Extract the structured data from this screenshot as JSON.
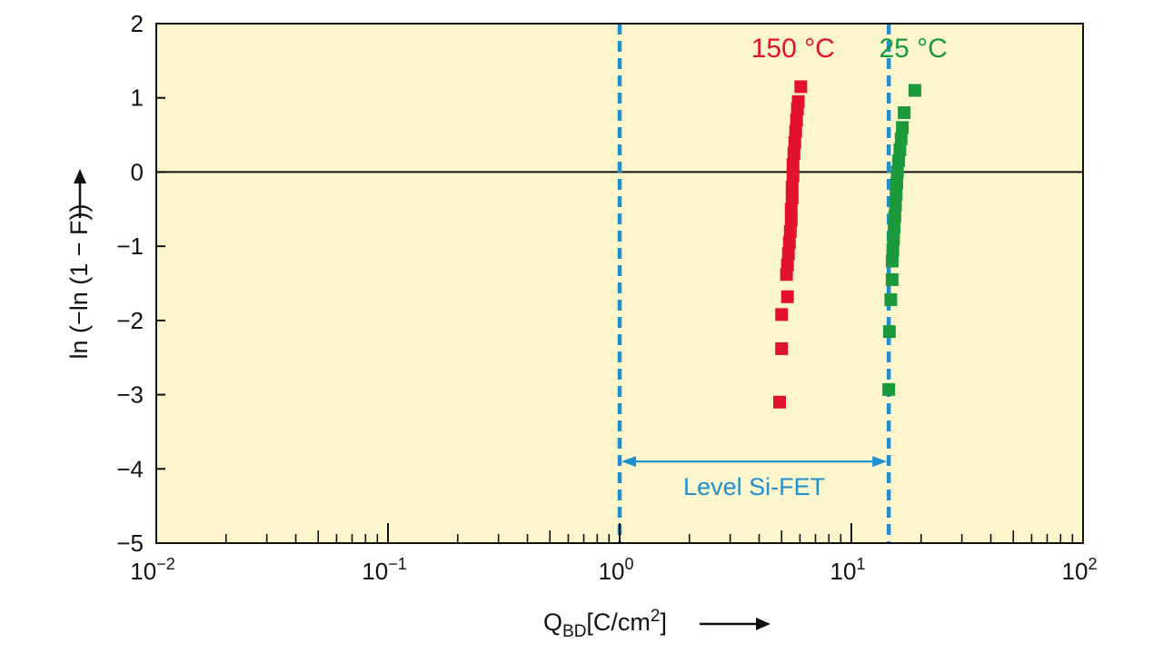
{
  "chart_data": {
    "type": "scatter",
    "title": "",
    "xlabel": {
      "main": "Q",
      "sub": "BD",
      "rest": "[C/cm",
      "sup": "2",
      "close": "]"
    },
    "ylabel": "ln (−ln (1 − F))",
    "x_scale": "log",
    "xlim": [
      0.01,
      100
    ],
    "ylim": [
      -5,
      2
    ],
    "x_ticks": [
      {
        "value": 0.01,
        "base": "10",
        "exp": "−2"
      },
      {
        "value": 0.1,
        "base": "10",
        "exp": "−1"
      },
      {
        "value": 1,
        "base": "10",
        "exp": "0"
      },
      {
        "value": 10,
        "base": "10",
        "exp": "1"
      },
      {
        "value": 100,
        "base": "10",
        "exp": "2"
      }
    ],
    "y_ticks": [
      {
        "value": 2,
        "label": "2"
      },
      {
        "value": 1,
        "label": "1"
      },
      {
        "value": 0,
        "label": "0"
      },
      {
        "value": -1,
        "label": "−1"
      },
      {
        "value": -2,
        "label": "−2"
      },
      {
        "value": -3,
        "label": "−3"
      },
      {
        "value": -4,
        "label": "−4"
      },
      {
        "value": -5,
        "label": "−5"
      }
    ],
    "zero_line": true,
    "plot_background": "#fdf5cc",
    "series": [
      {
        "name": "150 °C",
        "color": "#e3122b",
        "points": [
          [
            4.9,
            -3.1
          ],
          [
            5.0,
            -2.38
          ],
          [
            5.0,
            -1.92
          ],
          [
            5.3,
            -1.68
          ],
          [
            5.25,
            -1.38
          ],
          [
            5.3,
            -1.25
          ],
          [
            5.35,
            -1.1
          ],
          [
            5.4,
            -0.95
          ],
          [
            5.45,
            -0.8
          ],
          [
            5.5,
            -0.65
          ],
          [
            5.5,
            -0.5
          ],
          [
            5.55,
            -0.35
          ],
          [
            5.55,
            -0.2
          ],
          [
            5.6,
            -0.05
          ],
          [
            5.6,
            0.1
          ],
          [
            5.65,
            0.25
          ],
          [
            5.7,
            0.4
          ],
          [
            5.75,
            0.55
          ],
          [
            5.8,
            0.7
          ],
          [
            5.85,
            0.85
          ],
          [
            5.9,
            0.95
          ],
          [
            6.05,
            1.15
          ]
        ]
      },
      {
        "name": "25 °C",
        "color": "#1a9a3a",
        "points": [
          [
            14.5,
            -2.93
          ],
          [
            14.6,
            -2.15
          ],
          [
            14.8,
            -1.72
          ],
          [
            15.0,
            -1.45
          ],
          [
            15.0,
            -1.2
          ],
          [
            15.1,
            -1.05
          ],
          [
            15.2,
            -0.9
          ],
          [
            15.3,
            -0.75
          ],
          [
            15.4,
            -0.6
          ],
          [
            15.5,
            -0.45
          ],
          [
            15.6,
            -0.3
          ],
          [
            15.7,
            -0.15
          ],
          [
            15.8,
            0.0
          ],
          [
            16.0,
            0.15
          ],
          [
            16.2,
            0.3
          ],
          [
            16.4,
            0.45
          ],
          [
            16.6,
            0.6
          ],
          [
            16.9,
            0.8
          ],
          [
            18.8,
            1.1
          ]
        ]
      }
    ],
    "annotations": [
      {
        "text": "Level Si-FET",
        "x_range": [
          1.0,
          14.5
        ],
        "y": -4,
        "color": "#1e8fd0",
        "type": "double-arrow-between-dashed-lines"
      }
    ]
  }
}
